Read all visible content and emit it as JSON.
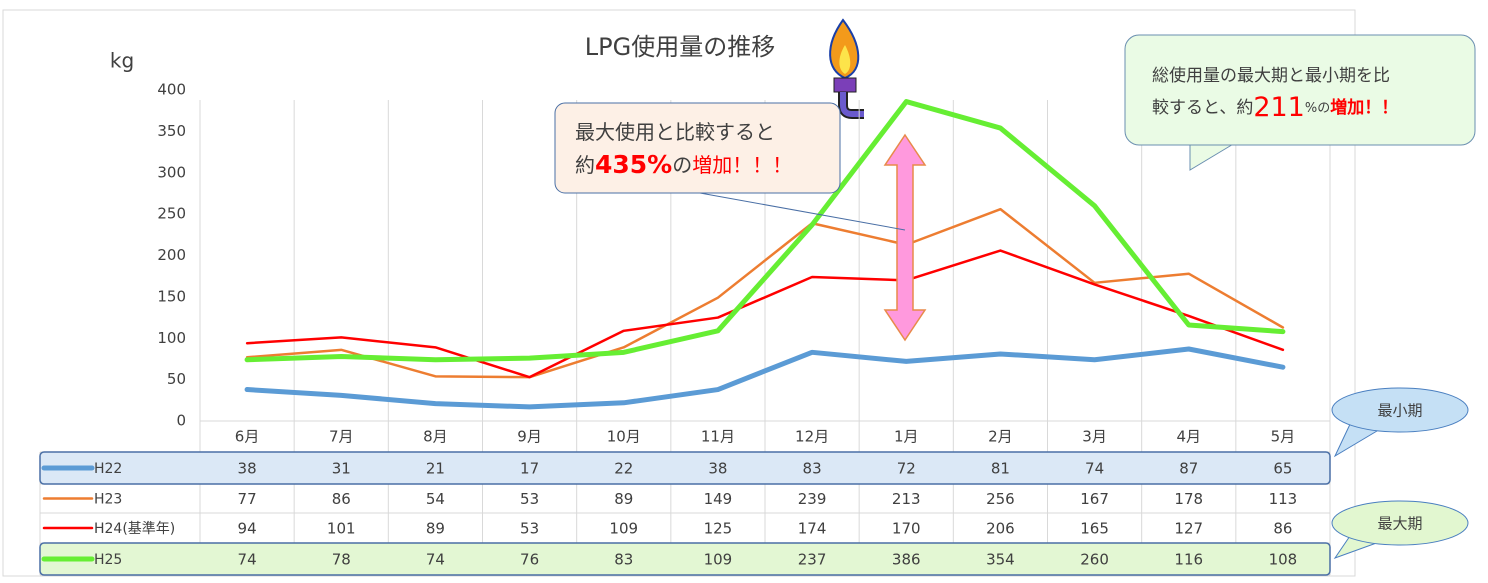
{
  "chart_data": {
    "type": "line",
    "title": "LPG使用量の推移",
    "y_label": "kg",
    "categories": [
      "6月",
      "7月",
      "8月",
      "9月",
      "10月",
      "11月",
      "12月",
      "1月",
      "2月",
      "3月",
      "4月",
      "5月"
    ],
    "series": [
      {
        "name": "H22",
        "color": "#5b9bd5",
        "width": 5,
        "values": [
          38,
          31,
          21,
          17,
          22,
          38,
          83,
          72,
          81,
          74,
          87,
          65
        ]
      },
      {
        "name": "H23",
        "color": "#ed7d31",
        "width": 2.5,
        "values": [
          77,
          86,
          54,
          53,
          89,
          149,
          239,
          213,
          256,
          167,
          178,
          113
        ]
      },
      {
        "name": "H24(基準年)",
        "color": "#ff0000",
        "width": 2.5,
        "values": [
          94,
          101,
          89,
          53,
          109,
          125,
          174,
          170,
          206,
          165,
          127,
          86
        ]
      },
      {
        "name": "H25",
        "color": "#66ee33",
        "width": 5,
        "values": [
          74,
          78,
          74,
          76,
          83,
          109,
          237,
          386,
          354,
          260,
          116,
          108
        ]
      }
    ],
    "ylim": [
      0,
      400
    ],
    "yticks": [
      0,
      50,
      100,
      150,
      200,
      250,
      300,
      350,
      400
    ],
    "annotations": {
      "peak_callout": [
        [
          "最大使用と比較すると"
        ],
        [
          "約",
          "435%",
          "の",
          "増加！！！"
        ]
      ],
      "total_callout": [
        [
          "総使用量の最大期と最小期を比"
        ],
        [
          "較すると、約",
          "211",
          "%の",
          "増加！！"
        ]
      ],
      "min_label": "最小期",
      "max_label": "最大期"
    }
  }
}
